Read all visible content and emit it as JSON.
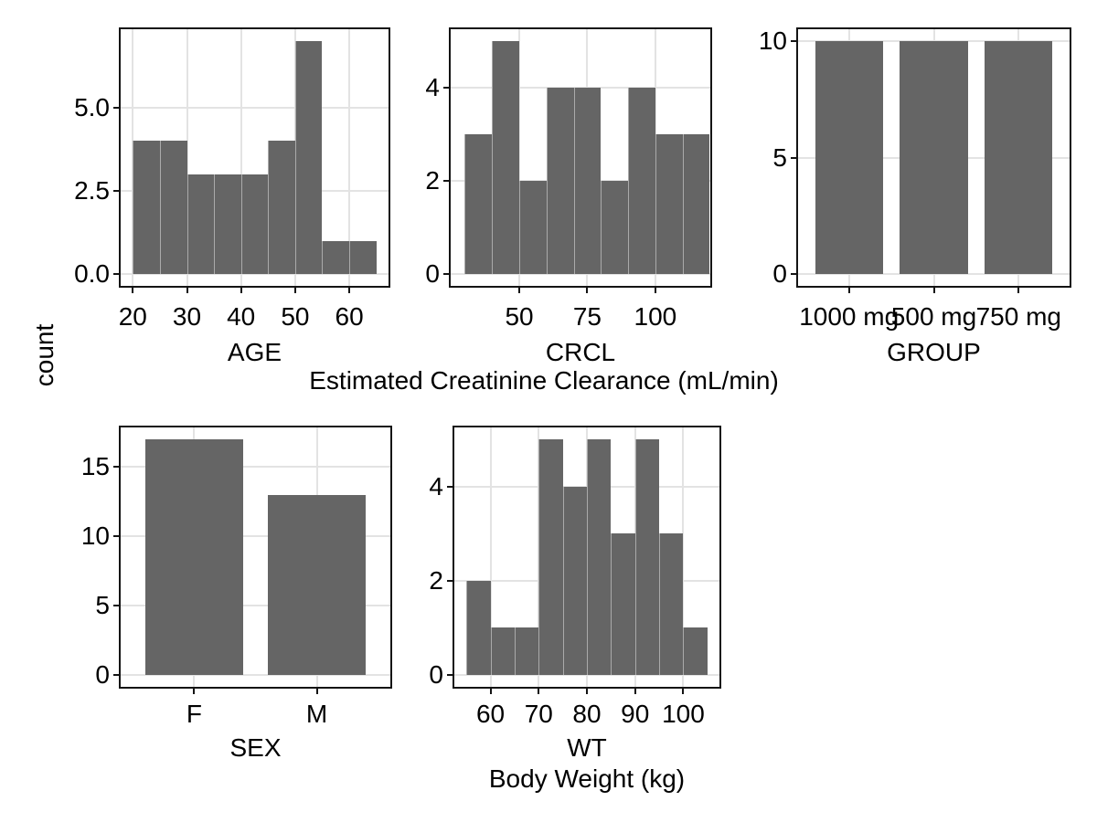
{
  "figure": {
    "y_axis_title": "count",
    "top_row_x_title": "Estimated Creatinine Clearance (mL/min)",
    "bottom_row_x_title": "Body Weight (kg)"
  },
  "style": {
    "bar_fill": "#656565",
    "gridline": "#e3e3e3",
    "panel_border": "#141414",
    "background": "#ffffff"
  },
  "chart_data": [
    {
      "id": "age",
      "type": "histogram",
      "panel_label": "AGE",
      "x_tick_values": [
        20,
        30,
        40,
        50,
        60
      ],
      "x_tick_labels": [
        "20",
        "30",
        "40",
        "50",
        "60"
      ],
      "x_domain": [
        17.75,
        67.25
      ],
      "y_tick_values": [
        0,
        2.5,
        5
      ],
      "y_tick_labels": [
        "0.0",
        "2.5",
        "5.0"
      ],
      "y_domain": [
        -0.35,
        7.35
      ],
      "bin_start": 20,
      "bin_width": 5,
      "counts": [
        4,
        4,
        3,
        3,
        3,
        4,
        7,
        1,
        1
      ]
    },
    {
      "id": "crcl",
      "type": "histogram",
      "panel_label": "CRCL",
      "x_tick_values": [
        50,
        75,
        100
      ],
      "x_tick_labels": [
        "50",
        "75",
        "100"
      ],
      "x_domain": [
        24.8,
        120.2
      ],
      "y_tick_values": [
        0,
        2,
        4
      ],
      "y_tick_labels": [
        "0",
        "2",
        "4"
      ],
      "y_domain": [
        -0.25,
        5.25
      ],
      "bin_start": 30,
      "bin_width": 10,
      "counts": [
        3,
        5,
        2,
        4,
        4,
        2,
        4,
        3,
        3
      ]
    },
    {
      "id": "group",
      "type": "bar",
      "panel_label": "GROUP",
      "categories": [
        "1000 mg",
        "500 mg",
        "750 mg"
      ],
      "values": [
        10,
        10,
        10
      ],
      "y_tick_values": [
        0,
        5,
        10
      ],
      "y_tick_labels": [
        "0",
        "5",
        "10"
      ],
      "y_domain": [
        -0.5,
        10.5
      ]
    },
    {
      "id": "sex",
      "type": "bar",
      "panel_label": "SEX",
      "categories": [
        "F",
        "M"
      ],
      "values": [
        17,
        13
      ],
      "y_tick_values": [
        0,
        5,
        10,
        15
      ],
      "y_tick_labels": [
        "0",
        "5",
        "10",
        "15"
      ],
      "y_domain": [
        -0.85,
        17.85
      ]
    },
    {
      "id": "wt",
      "type": "histogram",
      "panel_label": "WT",
      "x_tick_values": [
        60,
        70,
        80,
        90,
        100
      ],
      "x_tick_labels": [
        "60",
        "70",
        "80",
        "90",
        "100"
      ],
      "x_domain": [
        52.5,
        107.5
      ],
      "y_tick_values": [
        0,
        2,
        4
      ],
      "y_tick_labels": [
        "0",
        "2",
        "4"
      ],
      "y_domain": [
        -0.25,
        5.25
      ],
      "bin_start": 55,
      "bin_width": 5,
      "counts": [
        2,
        1,
        1,
        5,
        4,
        5,
        3,
        5,
        3,
        1
      ]
    }
  ]
}
